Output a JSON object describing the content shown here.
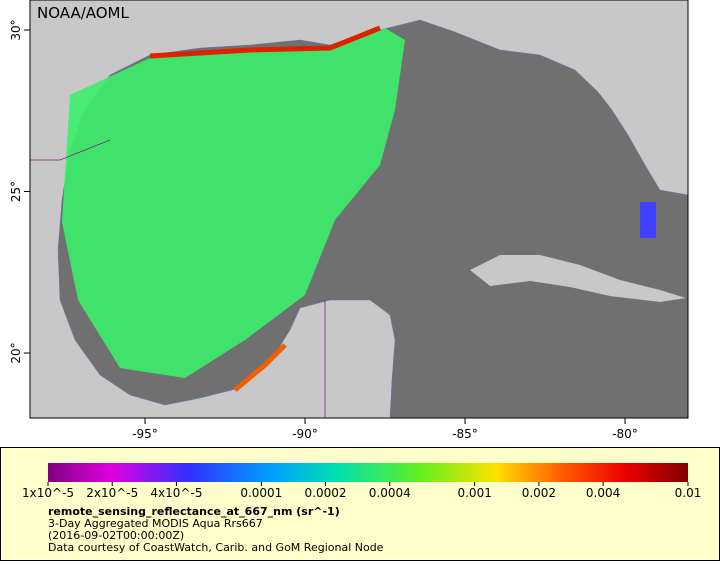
{
  "map": {
    "credit": "NOAA/AOML",
    "lat_ticks": [
      {
        "value": 30,
        "label": "30°"
      },
      {
        "value": 25,
        "label": "25°"
      },
      {
        "value": 20,
        "label": "20°"
      }
    ],
    "lon_ticks": [
      {
        "value": -95,
        "label": "-95°"
      },
      {
        "value": -90,
        "label": "-90°"
      },
      {
        "value": -85,
        "label": "-85°"
      },
      {
        "value": -80,
        "label": "-80°"
      }
    ]
  },
  "colorbar": {
    "limits": [
      1e-05,
      0.01
    ],
    "ticks": [
      {
        "value": 1e-05,
        "label": "1x10^-5"
      },
      {
        "value": 2e-05,
        "label": "2x10^-5"
      },
      {
        "value": 4e-05,
        "label": "4x10^-5"
      },
      {
        "value": 0.0001,
        "label": "0.0001"
      },
      {
        "value": 0.0002,
        "label": "0.0002"
      },
      {
        "value": 0.0004,
        "label": "0.0004"
      },
      {
        "value": 0.001,
        "label": "0.001"
      },
      {
        "value": 0.002,
        "label": "0.002"
      },
      {
        "value": 0.004,
        "label": "0.004"
      },
      {
        "value": 0.01,
        "label": "0.01"
      }
    ]
  },
  "legend": {
    "title": "remote_sensing_reflectance_at_667_nm (sr^-1)",
    "lines": [
      "3-Day Aggregated MODIS Aqua Rrs667",
      "(2016-09-02T00:00:00Z)",
      "Data courtesy of CoastWatch, Carib. and GoM Regional Node"
    ]
  }
}
